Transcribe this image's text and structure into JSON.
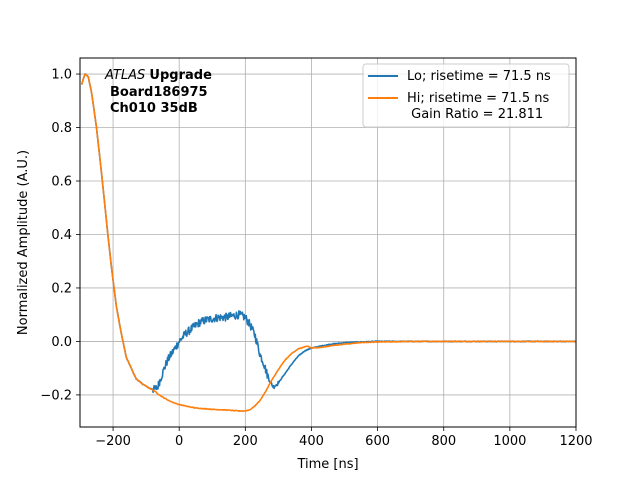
{
  "chart_data": {
    "type": "line",
    "xlabel": "Time [ns]",
    "ylabel": "Normalized Amplitude (A.U.)",
    "xlim": [
      -300,
      1200
    ],
    "ylim": [
      -0.32,
      1.06
    ],
    "xticks": [
      -200,
      0,
      200,
      400,
      600,
      800,
      1000,
      1200
    ],
    "xtick_labels": [
      "−200",
      "0",
      "200",
      "400",
      "600",
      "800",
      "1000",
      "1200"
    ],
    "yticks": [
      -0.2,
      0.0,
      0.2,
      0.4,
      0.6,
      0.8,
      1.0
    ],
    "ytick_labels": [
      "−0.2",
      "0.0",
      "0.2",
      "0.4",
      "0.6",
      "0.8",
      "1.0"
    ],
    "grid": true,
    "legend_position": "top-right",
    "annotation": {
      "experiment": "ATLAS",
      "line1_rest": "Upgrade",
      "line2": "Board186975",
      "line3": "Ch010 35dB"
    },
    "series": [
      {
        "name": "Lo; risetime = 71.5 ns",
        "color": "#1f77b4",
        "noisy": true,
        "x": [
          -295,
          -285,
          -275,
          -265,
          -250,
          -235,
          -220,
          -205,
          -190,
          -175,
          -160,
          -145,
          -130,
          -110,
          -90,
          -75,
          -65,
          -55,
          -45,
          -35,
          -20,
          0,
          20,
          40,
          60,
          80,
          100,
          120,
          140,
          160,
          180,
          200,
          215,
          230,
          245,
          255,
          265,
          275,
          285,
          300,
          320,
          340,
          360,
          380,
          400,
          430,
          460,
          500,
          550,
          600,
          700,
          800,
          900,
          1000,
          1100,
          1200
        ],
        "y": [
          0.96,
          1.0,
          0.99,
          0.93,
          0.8,
          0.63,
          0.45,
          0.28,
          0.13,
          0.03,
          -0.06,
          -0.1,
          -0.14,
          -0.16,
          -0.175,
          -0.18,
          -0.17,
          -0.135,
          -0.1,
          -0.07,
          -0.04,
          0.0,
          0.03,
          0.05,
          0.07,
          0.08,
          0.085,
          0.09,
          0.09,
          0.095,
          0.1,
          0.09,
          0.06,
          0.02,
          -0.05,
          -0.08,
          -0.12,
          -0.15,
          -0.17,
          -0.155,
          -0.12,
          -0.085,
          -0.055,
          -0.035,
          -0.025,
          -0.017,
          -0.01,
          -0.005,
          -0.002,
          0.0,
          0.0,
          0.0,
          0.0,
          0.0,
          0.0,
          0.0
        ]
      },
      {
        "name": "Hi; risetime = 71.5 ns\n Gain Ratio = 21.811",
        "color": "#ff7f0e",
        "noisy": false,
        "x": [
          -295,
          -285,
          -275,
          -265,
          -250,
          -235,
          -220,
          -205,
          -190,
          -175,
          -160,
          -145,
          -130,
          -110,
          -90,
          -75,
          -60,
          -45,
          -30,
          -15,
          0,
          25,
          50,
          100,
          150,
          180,
          200,
          215,
          230,
          245,
          260,
          280,
          300,
          320,
          340,
          360,
          380,
          390,
          400,
          430,
          460,
          500,
          550,
          600,
          700,
          800,
          900,
          1000,
          1100,
          1200
        ],
        "y": [
          0.96,
          1.0,
          0.99,
          0.93,
          0.8,
          0.63,
          0.45,
          0.28,
          0.13,
          0.03,
          -0.06,
          -0.1,
          -0.14,
          -0.16,
          -0.175,
          -0.185,
          -0.2,
          -0.212,
          -0.222,
          -0.23,
          -0.236,
          -0.243,
          -0.249,
          -0.254,
          -0.257,
          -0.26,
          -0.26,
          -0.255,
          -0.24,
          -0.22,
          -0.19,
          -0.145,
          -0.105,
          -0.07,
          -0.045,
          -0.028,
          -0.02,
          -0.018,
          -0.025,
          -0.022,
          -0.016,
          -0.01,
          -0.004,
          -0.002,
          0.0,
          0.0,
          0.0,
          0.0,
          0.0,
          0.0
        ]
      }
    ]
  }
}
